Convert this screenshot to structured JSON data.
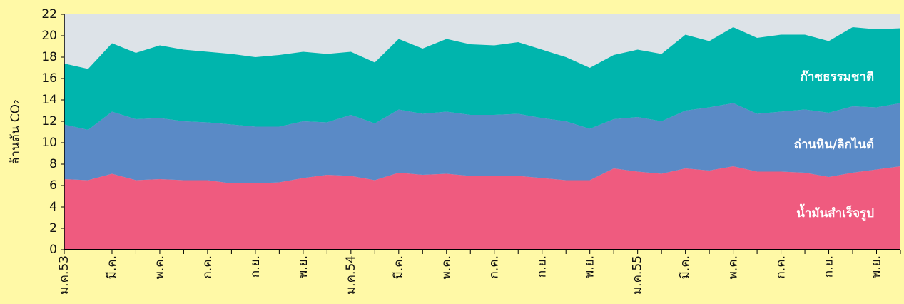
{
  "chart_data": {
    "type": "stacked_area",
    "y_label": "ล้านตัน CO₂",
    "categories": [
      "ม.ค.53",
      null,
      "มี.ค.",
      null,
      "พ.ค.",
      null,
      "ก.ค.",
      null,
      "ก.ย.",
      null,
      "พ.ย.",
      null,
      "ม.ค.54",
      null,
      "มี.ค.",
      null,
      "พ.ค.",
      null,
      "ก.ค.",
      null,
      "ก.ย.",
      null,
      "พ.ย.",
      null,
      "ม.ค.55",
      null,
      "มี.ค.",
      null,
      "พ.ค.",
      null,
      "ก.ค.",
      null,
      "ก.ย.",
      null,
      "พ.ย.",
      null
    ],
    "series": [
      {
        "name": "น้ำมันสำเร็จรูป",
        "color": "#ef5b7f",
        "values": [
          6.6,
          6.5,
          7.1,
          6.5,
          6.6,
          6.5,
          6.5,
          6.2,
          6.2,
          6.3,
          6.7,
          7.0,
          6.9,
          6.5,
          7.2,
          7.0,
          7.1,
          6.9,
          6.9,
          6.9,
          6.7,
          6.5,
          6.5,
          7.6,
          7.3,
          7.1,
          7.6,
          7.4,
          7.8,
          7.3,
          7.3,
          7.2,
          6.8,
          7.2,
          7.5,
          7.8
        ]
      },
      {
        "name": "ถ่านหิน/ลิกไนต์",
        "color": "#5a8ac6",
        "values": [
          5.1,
          4.7,
          5.8,
          5.7,
          5.7,
          5.5,
          5.4,
          5.5,
          5.3,
          5.2,
          5.3,
          4.9,
          5.7,
          5.3,
          5.9,
          5.7,
          5.8,
          5.7,
          5.7,
          5.8,
          5.6,
          5.5,
          4.8,
          4.6,
          5.1,
          4.9,
          5.4,
          5.9,
          5.9,
          5.4,
          5.6,
          5.9,
          6.0,
          6.2,
          5.8,
          5.9
        ]
      },
      {
        "name": "ก๊าซธรรมชาติ",
        "color": "#00b5ad",
        "values": [
          5.7,
          5.7,
          6.4,
          6.2,
          6.8,
          6.7,
          6.6,
          6.6,
          6.5,
          6.7,
          6.5,
          6.4,
          5.9,
          5.7,
          6.6,
          6.1,
          6.8,
          6.6,
          6.5,
          6.7,
          6.4,
          6.0,
          5.7,
          6.0,
          6.3,
          6.3,
          7.1,
          6.2,
          7.1,
          7.1,
          7.2,
          7.0,
          6.7,
          7.4,
          7.3,
          7.0
        ]
      }
    ],
    "ylim": [
      0,
      22
    ],
    "yticks": [
      0,
      2,
      4,
      6,
      8,
      10,
      12,
      14,
      16,
      18,
      20,
      22
    ],
    "plot_background": "#dde3e8",
    "background": "#fff9a6"
  }
}
